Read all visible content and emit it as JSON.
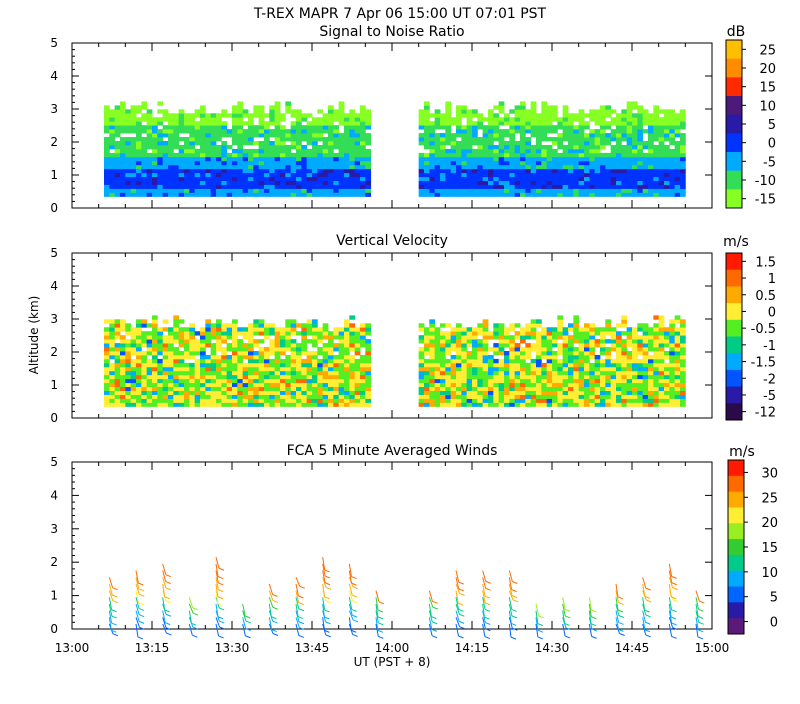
{
  "header": {
    "title": "T-REX   MAPR   7 Apr 06   15:00 UT   07:01   PST"
  },
  "x_axis": {
    "label": "UT  (PST + 8)",
    "tick_labels": [
      "13:00",
      "13:15",
      "13:30",
      "13:45",
      "14:00",
      "14:15",
      "14:30",
      "14:45",
      "15:00"
    ]
  },
  "chart_data": [
    {
      "type": "heatmap",
      "title": "Signal to Noise Ratio",
      "x_range": [
        "13:00",
        "15:00"
      ],
      "ylim": [
        0,
        5
      ],
      "y_ticks": [
        0,
        1,
        2,
        3,
        4,
        5
      ],
      "data_gap": [
        "13:56",
        "14:05"
      ],
      "colorbar": {
        "unit": "dB",
        "levels": [
          "25",
          "20",
          "15",
          "10",
          "5",
          "0",
          "-5",
          "-10",
          "-15"
        ],
        "colors": [
          "#ffbf00",
          "#ff8c00",
          "#ff2a00",
          "#4b1a7a",
          "#2a1aa8",
          "#0033ff",
          "#00aaff",
          "#33dd55",
          "#88ff22"
        ]
      }
    },
    {
      "type": "heatmap",
      "title": "Vertical Velocity",
      "x_range": [
        "13:00",
        "15:00"
      ],
      "ylabel": "Altitude (km)",
      "ylim": [
        0,
        5
      ],
      "y_ticks": [
        0,
        1,
        2,
        3,
        4,
        5
      ],
      "data_gap": [
        "13:56",
        "14:05"
      ],
      "colorbar": {
        "unit": "m/s",
        "levels": [
          "1.5",
          "1",
          "0.5",
          "0",
          "-0.5",
          "-1",
          "-1.5",
          "-2",
          "-5",
          "-12"
        ],
        "colors": [
          "#ff1a00",
          "#ff6a00",
          "#ffaa00",
          "#ffee33",
          "#55ee22",
          "#00cc88",
          "#00aaff",
          "#0055ff",
          "#2a1aa8",
          "#2a0a4a"
        ]
      }
    },
    {
      "type": "scatter",
      "title": "FCA 5 Minute Averaged Winds",
      "x_range": [
        "13:00",
        "15:00"
      ],
      "ylim": [
        0,
        5
      ],
      "y_ticks": [
        0,
        1,
        2,
        3,
        4,
        5
      ],
      "profile_times": [
        "13:07",
        "13:12",
        "13:17",
        "13:22",
        "13:27",
        "13:32",
        "13:37",
        "13:42",
        "13:47",
        "13:52",
        "13:57",
        "14:07",
        "14:12",
        "14:17",
        "14:22",
        "14:27",
        "14:32",
        "14:37",
        "14:42",
        "14:47",
        "14:52",
        "14:57"
      ],
      "colorbar": {
        "unit": "m/s",
        "levels": [
          "30",
          "25",
          "20",
          "15",
          "10",
          "5",
          "0"
        ],
        "colors": [
          "#ff1a00",
          "#ff6a00",
          "#ffaa00",
          "#ffee33",
          "#99ee22",
          "#33cc33",
          "#00cc88",
          "#00aaff",
          "#0066ff",
          "#2a1aa8",
          "#5a1a7a"
        ]
      }
    }
  ]
}
